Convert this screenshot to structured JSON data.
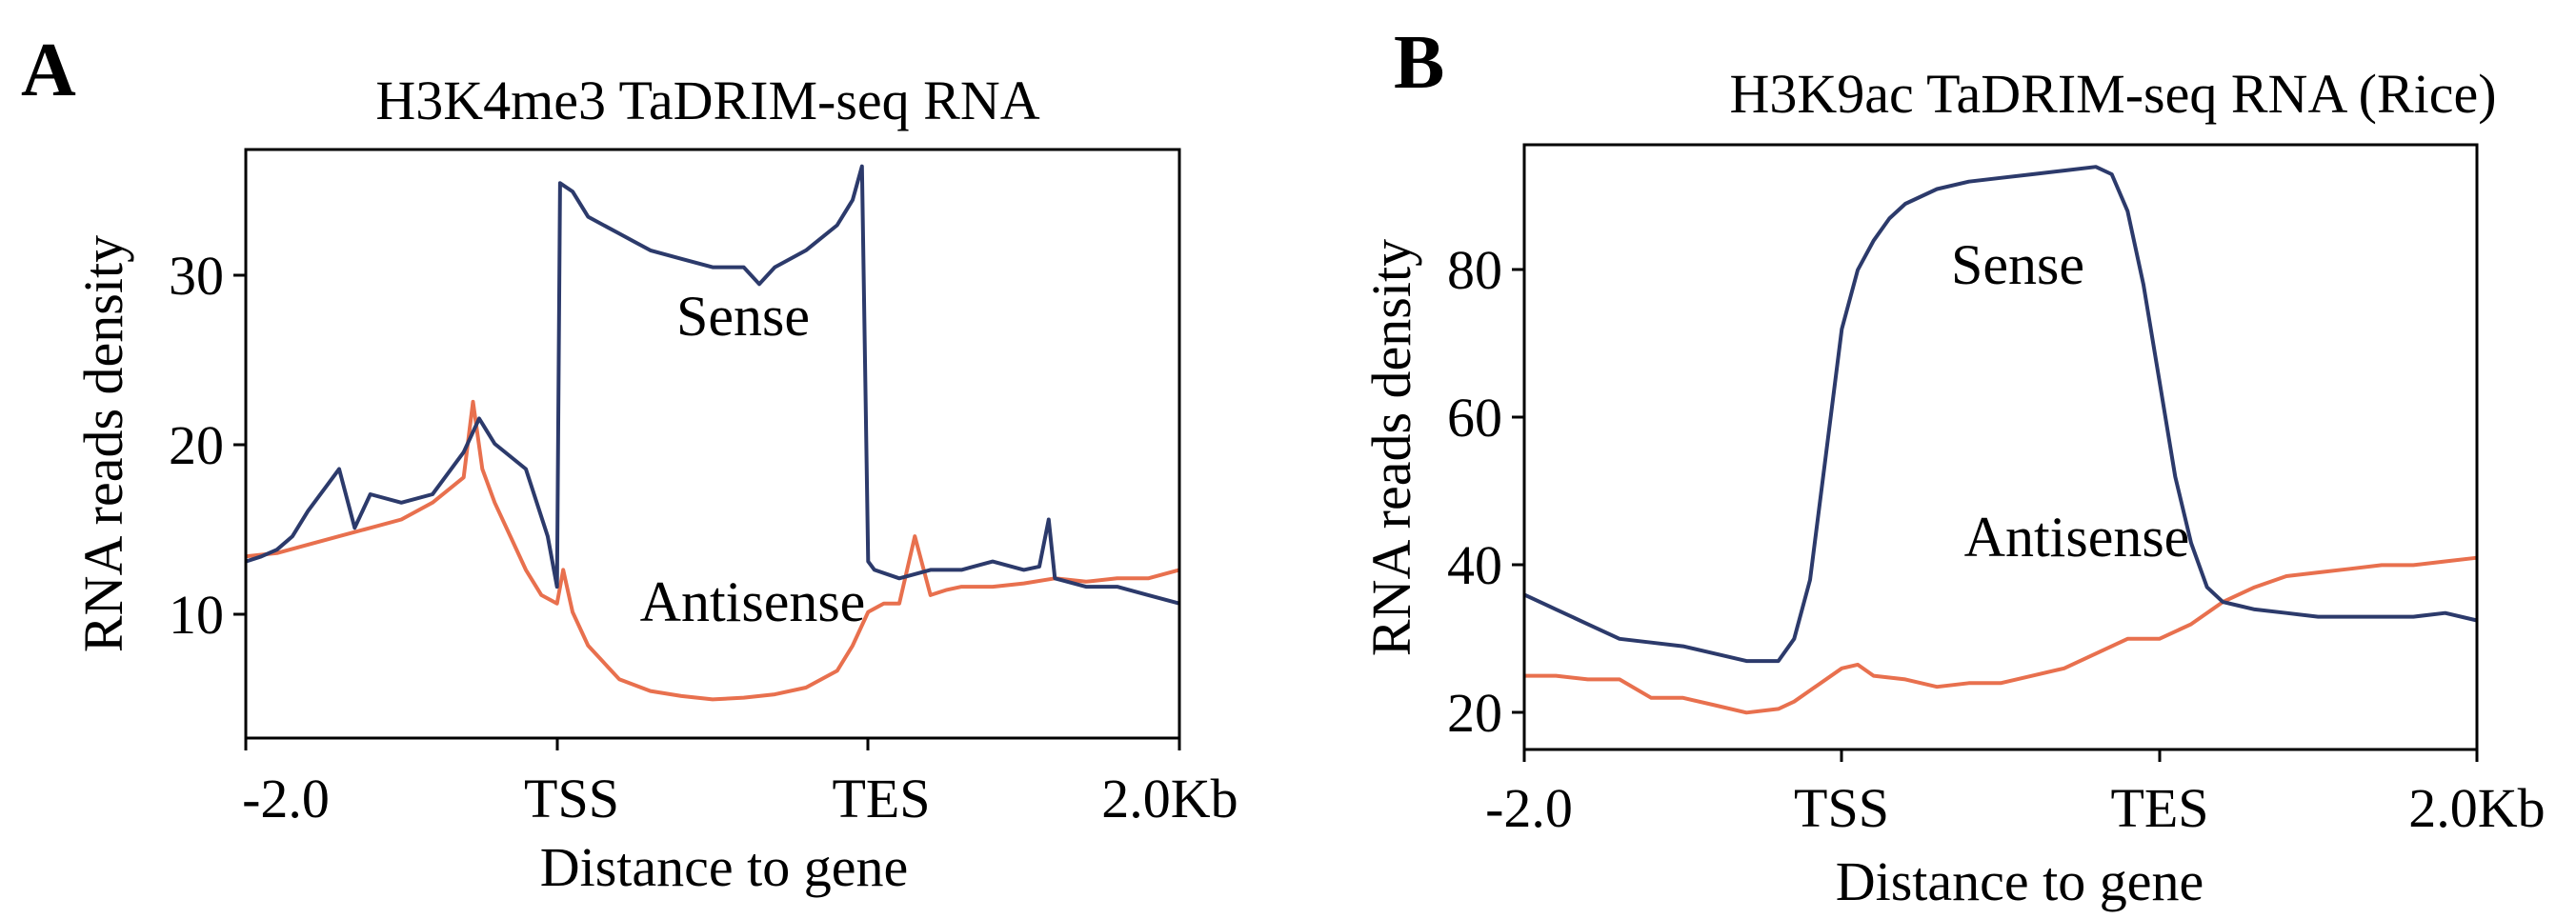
{
  "panels": [
    {
      "letter": "A",
      "title": "H3K4me3 TaDRIM-seq RNA"
    },
    {
      "letter": "B",
      "title": "H3K9ac TaDRIM-seq RNA (Rice)"
    }
  ],
  "colors": {
    "sense": "#2c3a6b",
    "antisense": "#e8704e",
    "axis": "#000000"
  },
  "chart_data": [
    {
      "type": "line",
      "title": "H3K4me3 TaDRIM-seq RNA",
      "xlabel": "Distance to gene",
      "ylabel": "RNA reads density",
      "x_ticks": [
        "-2.0",
        "TSS",
        "TES",
        "2.0Kb"
      ],
      "xlim": [
        0,
        3
      ],
      "ylim": [
        2,
        37
      ],
      "y_ticks": [
        10,
        20,
        30
      ],
      "grid": false,
      "series": [
        {
          "name": "Sense",
          "x": [
            0,
            0.05,
            0.1,
            0.15,
            0.2,
            0.3,
            0.35,
            0.4,
            0.5,
            0.6,
            0.7,
            0.75,
            0.8,
            0.9,
            0.97,
            1.0,
            1.01,
            1.05,
            1.1,
            1.2,
            1.3,
            1.4,
            1.5,
            1.6,
            1.65,
            1.7,
            1.8,
            1.9,
            1.95,
            1.98,
            2.0,
            2.02,
            2.1,
            2.2,
            2.3,
            2.4,
            2.5,
            2.55,
            2.58,
            2.6,
            2.7,
            2.8,
            2.9,
            3.0
          ],
          "values": [
            12.5,
            12.8,
            13.2,
            14.0,
            15.5,
            18.0,
            14.5,
            16.5,
            16.0,
            16.5,
            19.0,
            21.0,
            19.5,
            18.0,
            14.0,
            11.0,
            35.0,
            34.5,
            33.0,
            32.0,
            31.0,
            30.5,
            30.0,
            30.0,
            29.0,
            30.0,
            31.0,
            32.5,
            34.0,
            36.0,
            12.5,
            12.0,
            11.5,
            12.0,
            12.0,
            12.5,
            12.0,
            12.2,
            15.0,
            11.5,
            11.0,
            11.0,
            10.5,
            10.0
          ]
        },
        {
          "name": "Antisense",
          "x": [
            0,
            0.1,
            0.2,
            0.3,
            0.4,
            0.5,
            0.6,
            0.7,
            0.73,
            0.76,
            0.8,
            0.85,
            0.9,
            0.95,
            1.0,
            1.02,
            1.05,
            1.1,
            1.2,
            1.3,
            1.4,
            1.5,
            1.6,
            1.7,
            1.8,
            1.9,
            1.95,
            2.0,
            2.05,
            2.1,
            2.15,
            2.2,
            2.25,
            2.3,
            2.4,
            2.5,
            2.6,
            2.7,
            2.8,
            2.9,
            3.0
          ],
          "values": [
            12.8,
            13.0,
            13.5,
            14.0,
            14.5,
            15.0,
            16.0,
            17.5,
            22.0,
            18.0,
            16.0,
            14.0,
            12.0,
            10.5,
            10.0,
            12.0,
            9.5,
            7.5,
            5.5,
            4.8,
            4.5,
            4.3,
            4.4,
            4.6,
            5.0,
            6.0,
            7.5,
            9.5,
            10.0,
            10.0,
            14.0,
            10.5,
            10.8,
            11.0,
            11.0,
            11.2,
            11.5,
            11.3,
            11.5,
            11.5,
            12.0
          ]
        }
      ]
    },
    {
      "type": "line",
      "title": "H3K9ac TaDRIM-seq RNA (Rice)",
      "xlabel": "Distance to gene",
      "ylabel": "RNA reads density",
      "x_ticks": [
        "-2.0",
        "TSS",
        "TES",
        "2.0Kb"
      ],
      "xlim": [
        0,
        3
      ],
      "ylim": [
        15,
        97
      ],
      "y_ticks": [
        20,
        40,
        60,
        80
      ],
      "grid": false,
      "series": [
        {
          "name": "Sense",
          "x": [
            0,
            0.1,
            0.2,
            0.3,
            0.4,
            0.5,
            0.6,
            0.7,
            0.8,
            0.85,
            0.9,
            0.95,
            1.0,
            1.05,
            1.1,
            1.15,
            1.2,
            1.3,
            1.4,
            1.5,
            1.6,
            1.7,
            1.8,
            1.85,
            1.9,
            1.95,
            2.0,
            2.05,
            2.1,
            2.15,
            2.2,
            2.25,
            2.3,
            2.4,
            2.5,
            2.6,
            2.7,
            2.8,
            2.9,
            3.0
          ],
          "values": [
            36.0,
            34.0,
            32.0,
            30.0,
            29.5,
            29.0,
            28.0,
            27.0,
            27.0,
            30.0,
            38.0,
            55.0,
            72.0,
            80.0,
            84.0,
            87.0,
            89.0,
            91.0,
            92.0,
            92.5,
            93.0,
            93.5,
            94.0,
            93.0,
            88.0,
            78.0,
            65.0,
            52.0,
            43.0,
            37.0,
            35.0,
            34.5,
            34.0,
            33.5,
            33.0,
            33.0,
            33.0,
            33.0,
            33.5,
            32.5
          ]
        },
        {
          "name": "Antisense",
          "x": [
            0,
            0.1,
            0.2,
            0.3,
            0.4,
            0.5,
            0.6,
            0.7,
            0.8,
            0.85,
            0.9,
            1.0,
            1.05,
            1.1,
            1.2,
            1.3,
            1.4,
            1.5,
            1.6,
            1.7,
            1.8,
            1.9,
            2.0,
            2.1,
            2.2,
            2.3,
            2.4,
            2.5,
            2.6,
            2.7,
            2.8,
            2.9,
            3.0
          ],
          "values": [
            25.0,
            25.0,
            24.5,
            24.5,
            22.0,
            22.0,
            21.0,
            20.0,
            20.5,
            21.5,
            23.0,
            26.0,
            26.5,
            25.0,
            24.5,
            23.5,
            24.0,
            24.0,
            25.0,
            26.0,
            28.0,
            30.0,
            30.0,
            32.0,
            35.0,
            37.0,
            38.5,
            39.0,
            39.5,
            40.0,
            40.0,
            40.5,
            41.0
          ]
        }
      ]
    }
  ]
}
